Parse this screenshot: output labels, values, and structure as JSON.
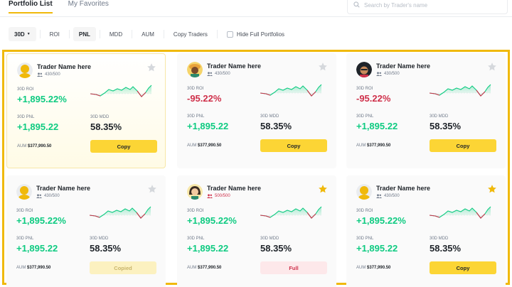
{
  "tabs": {
    "portfolio": "Portfolio List",
    "favorites": "My Favorites"
  },
  "search": {
    "placeholder": "Search by Trader's name"
  },
  "filters": {
    "period": "30D",
    "roi": "ROI",
    "pnl": "PNL",
    "mdd": "MDD",
    "aum": "AUM",
    "copy_traders": "Copy Traders",
    "hide_full": "Hide Full Portfolios"
  },
  "colors": {
    "accent": "#f0b90b",
    "up": "#0ecb81",
    "down": "#cf304a"
  },
  "cards": [
    {
      "name": "Trader Name here",
      "followers": "430/500",
      "roi_label": "30D ROI",
      "roi": "+1,895.22%",
      "roi_dir": "up",
      "pnl_label": "30D PNL",
      "pnl": "+1,895.22",
      "mdd_label": "30D MDD",
      "mdd": "58.35%",
      "aum_label": "AUM",
      "aum": "$377,990.50",
      "button": "Copy",
      "button_state": "copy",
      "favorite": false,
      "avatar": "yellow-avatar-icon"
    },
    {
      "name": "Trader Name here",
      "followers": "430/500",
      "roi_label": "30D ROI",
      "roi": "-95.22%",
      "roi_dir": "down",
      "pnl_label": "30D PNL",
      "pnl": "+1,895.22",
      "mdd_label": "30D MDD",
      "mdd": "58.35%",
      "aum_label": "AUM",
      "aum": "$377,990.50",
      "button": "Copy",
      "button_state": "copy",
      "favorite": false,
      "avatar": "hat-avatar-icon"
    },
    {
      "name": "Trader Name here",
      "followers": "430/500",
      "roi_label": "30D ROI",
      "roi": "-95.22%",
      "roi_dir": "down",
      "pnl_label": "30D PNL",
      "pnl": "+1,895.22",
      "mdd_label": "30D MDD",
      "mdd": "58.35%",
      "aum_label": "AUM",
      "aum": "$377,990.50",
      "button": "Copy",
      "button_state": "copy",
      "favorite": false,
      "avatar": "dark-hair-avatar-icon"
    },
    {
      "name": "Trader Name here",
      "followers": "430/500",
      "roi_label": "30D ROI",
      "roi": "+1,895.22%",
      "roi_dir": "up",
      "pnl_label": "30D PNL",
      "pnl": "+1,895.22",
      "mdd_label": "30D MDD",
      "mdd": "58.35%",
      "aum_label": "AUM",
      "aum": "$377,990.50",
      "button": "Copied",
      "button_state": "copied",
      "favorite": false,
      "avatar": "yellow-avatar-icon"
    },
    {
      "name": "Trader Name here",
      "followers": "500/500",
      "followers_full": true,
      "roi_label": "30D ROI",
      "roi": "+1,895.22%",
      "roi_dir": "up",
      "pnl_label": "30D PNL",
      "pnl": "+1,895.22",
      "mdd_label": "30D MDD",
      "mdd": "58.35%",
      "aum_label": "AUM",
      "aum": "$377,990.50",
      "button": "Full",
      "button_state": "full",
      "favorite": true,
      "avatar": "girl-avatar-icon"
    },
    {
      "name": "Trader Name here",
      "followers": "430/500",
      "roi_label": "30D ROI",
      "roi": "+1,895.22%",
      "roi_dir": "up",
      "pnl_label": "30D PNL",
      "pnl": "+1,895.22",
      "mdd_label": "30D MDD",
      "mdd": "58.35%",
      "aum_label": "AUM",
      "aum": "$377,990.50",
      "button": "Copy",
      "button_state": "copy",
      "favorite": true,
      "avatar": "yellow-avatar-icon"
    }
  ]
}
